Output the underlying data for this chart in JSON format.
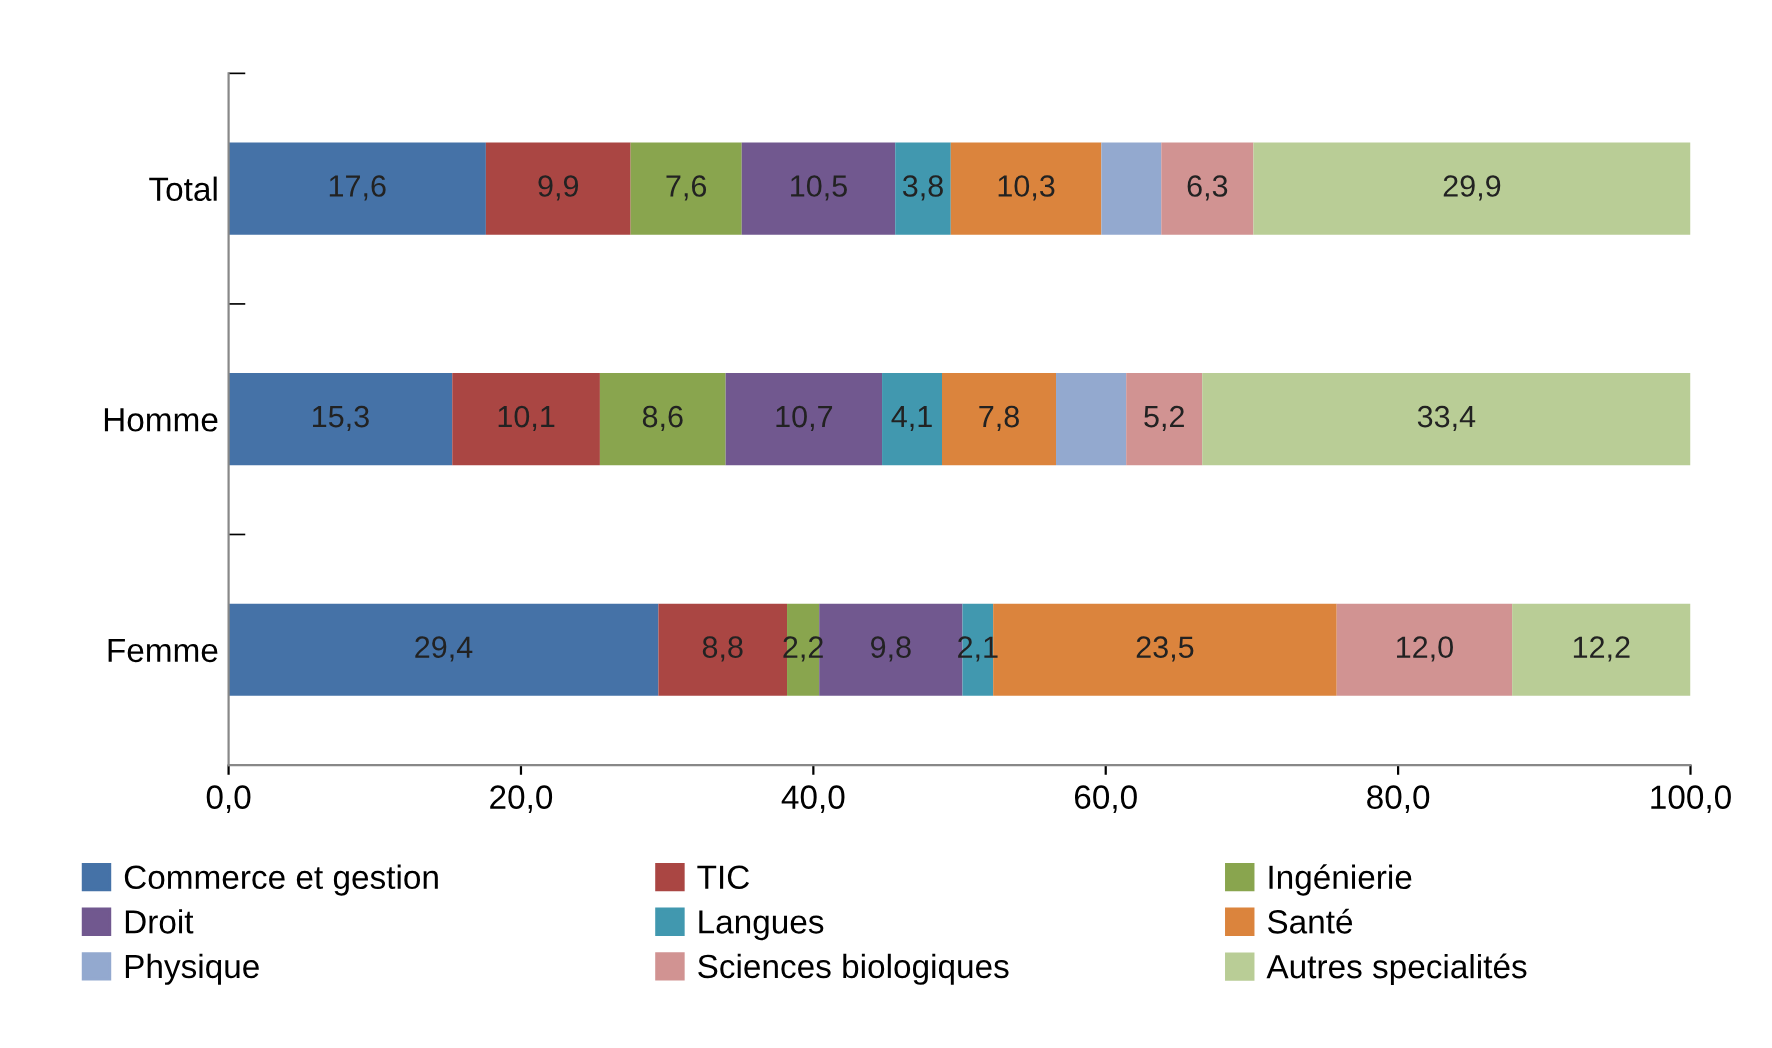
{
  "chart_data": {
    "type": "bar",
    "orientation": "horizontal",
    "stacked": true,
    "legend": "bottom",
    "grid": false,
    "categories": [
      "Total",
      "Homme",
      "Femme"
    ],
    "xlim": [
      0,
      100
    ],
    "xticks": [
      {
        "value": 0,
        "label": "0,0"
      },
      {
        "value": 20,
        "label": "20,0"
      },
      {
        "value": 40,
        "label": "40,0"
      },
      {
        "value": 60,
        "label": "60,0"
      },
      {
        "value": 80,
        "label": "80,0"
      },
      {
        "value": 100,
        "label": "100,0"
      }
    ],
    "series": [
      {
        "name": "Commerce et gestion",
        "color": "#4572a7",
        "values": [
          17.6,
          15.3,
          29.4
        ],
        "value_labels": [
          "17,6",
          "15,3",
          "29,4"
        ]
      },
      {
        "name": "TIC",
        "color": "#aa4643",
        "values": [
          9.9,
          10.1,
          8.8
        ],
        "value_labels": [
          "9,9",
          "10,1",
          "8,8"
        ]
      },
      {
        "name": "Ingénierie",
        "color": "#89a54e",
        "values": [
          7.6,
          8.6,
          2.2
        ],
        "value_labels": [
          "7,6",
          "8,6",
          "2,2"
        ]
      },
      {
        "name": "Droit",
        "color": "#71588f",
        "values": [
          10.5,
          10.7,
          9.8
        ],
        "value_labels": [
          "10,5",
          "10,7",
          "9,8"
        ]
      },
      {
        "name": "Langues",
        "color": "#4198af",
        "values": [
          3.8,
          4.1,
          2.1
        ],
        "value_labels": [
          "3,8",
          "4,1",
          "2,1"
        ]
      },
      {
        "name": "Santé",
        "color": "#db843d",
        "values": [
          10.3,
          7.8,
          23.5
        ],
        "value_labels": [
          "10,3",
          "7,8",
          "23,5"
        ]
      },
      {
        "name": "Physique",
        "color": "#93a9cf",
        "values": [
          4.1,
          4.8,
          null
        ]
      },
      {
        "name": "Sciences biologiques",
        "color": "#d19392",
        "values": [
          6.3,
          5.2,
          12.0
        ],
        "value_labels": [
          "6,3",
          "5,2",
          "12,0"
        ]
      },
      {
        "name": "Autres specialités",
        "color": "#b9cd96",
        "values": [
          29.9,
          33.4,
          12.2
        ],
        "value_labels": [
          "29,9",
          "33,4",
          "12,2"
        ]
      }
    ]
  }
}
